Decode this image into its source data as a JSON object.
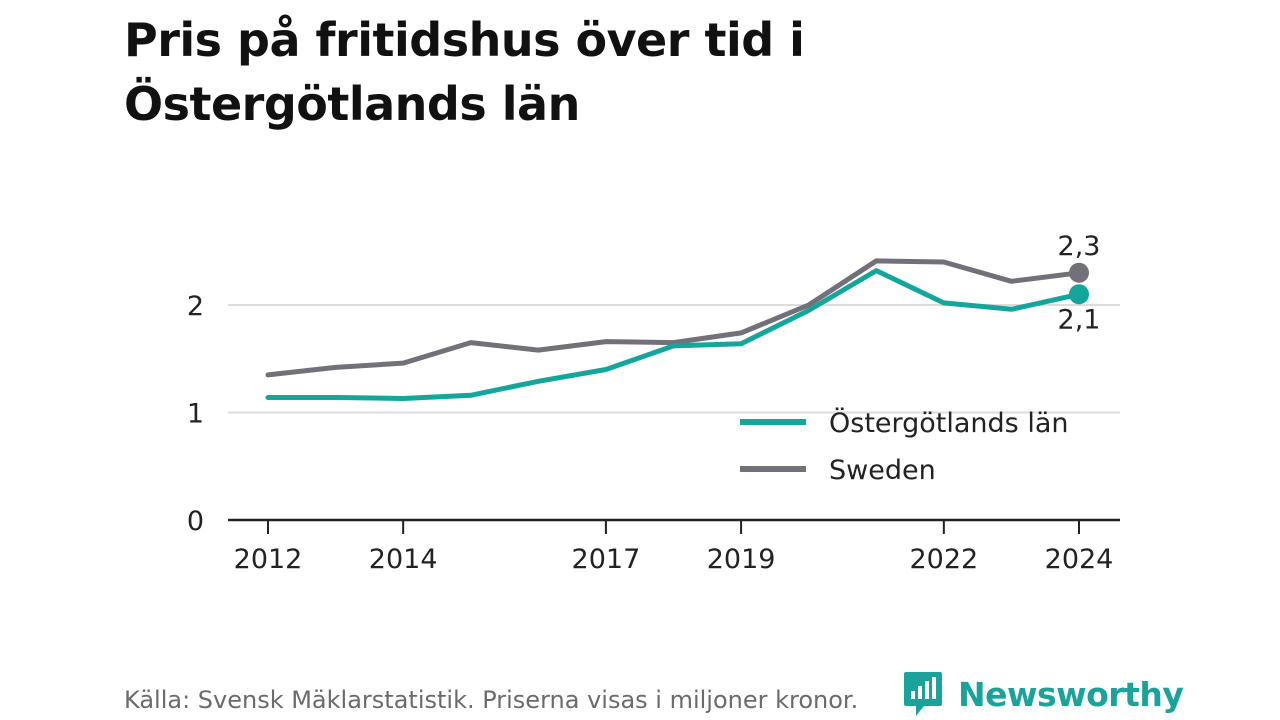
{
  "title": "Pris på fritidshus över tid i Östergötlands län",
  "source_note": "Källa: Svensk Mäklarstatistik. Priserna visas i miljoner kronor.",
  "brand": {
    "name": "Newsworthy",
    "icon": "newsworthy-logo-icon",
    "color": "#1aa39a"
  },
  "chart_data": {
    "type": "line",
    "title": "Pris på fritidshus över tid i Östergötlands län",
    "x": [
      2012,
      2013,
      2014,
      2015,
      2016,
      2017,
      2018,
      2019,
      2020,
      2021,
      2022,
      2023,
      2024
    ],
    "series": [
      {
        "name": "Östergötlands län",
        "color": "#15a69b",
        "values": [
          1.14,
          1.14,
          1.13,
          1.16,
          1.29,
          1.4,
          1.62,
          1.64,
          1.95,
          2.32,
          2.02,
          1.96,
          2.1
        ],
        "end_label": "2,1"
      },
      {
        "name": "Sweden",
        "color": "#727078",
        "values": [
          1.35,
          1.42,
          1.46,
          1.65,
          1.58,
          1.66,
          1.65,
          1.74,
          2.0,
          2.41,
          2.4,
          2.22,
          2.3
        ],
        "end_label": "2,3"
      }
    ],
    "x_ticks": [
      2012,
      2014,
      2017,
      2019,
      2022,
      2024
    ],
    "y_ticks": [
      {
        "value": 0,
        "label": "0"
      },
      {
        "value": 1,
        "label": "1"
      },
      {
        "value": 2,
        "label": "2"
      }
    ],
    "xlim": [
      2012,
      2024
    ],
    "ylim": [
      0,
      2.55
    ],
    "grid": true,
    "legend_position": "bottom-right"
  }
}
